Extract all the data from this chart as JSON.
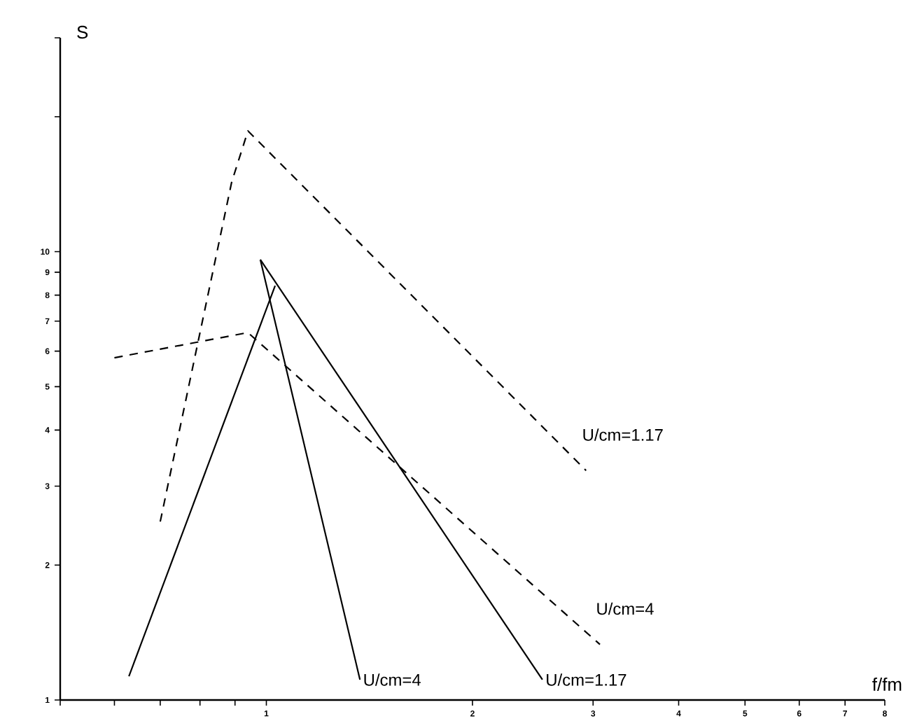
{
  "chart_data": {
    "type": "line",
    "log": "xy",
    "xlabel": "f/fm",
    "ylabel": "S",
    "marker": "none",
    "xlim": [
      0.5,
      8
    ],
    "ylim": [
      1,
      30
    ],
    "xticks": [
      {
        "value": 0.5,
        "label": null
      },
      {
        "value": 0.6,
        "label": null
      },
      {
        "value": 0.7,
        "label": null
      },
      {
        "value": 0.8,
        "label": null
      },
      {
        "value": 0.9,
        "label": null
      },
      1,
      2,
      3,
      4,
      5,
      6,
      7,
      8
    ],
    "yticks": [
      1,
      2,
      3,
      4,
      5,
      6,
      7,
      8,
      9,
      10,
      {
        "value": 20,
        "label": null
      },
      {
        "value": 30,
        "label": null
      }
    ],
    "series": [
      {
        "name": "U/cm=1.17",
        "color": "#000000",
        "line_style": "dashed",
        "x": [
          0.7,
          0.89,
          0.94,
          2.93
        ],
        "values": [
          2.5,
          14.3,
          18.6,
          3.25
        ]
      },
      {
        "name": "U/cm=4",
        "color": "#000000",
        "line_style": "dashed",
        "x": [
          0.6,
          0.94,
          3.07
        ],
        "values": [
          5.8,
          6.6,
          1.33
        ]
      },
      {
        "color": "#000000",
        "line_style": "solid",
        "x": [
          0.63,
          1.03
        ],
        "values": [
          1.13,
          8.4
        ]
      },
      {
        "name": "U/cm=4",
        "color": "#000000",
        "line_style": "solid",
        "x": [
          0.98,
          1.37
        ],
        "values": [
          9.6,
          1.11
        ]
      },
      {
        "name": "U/cm=1.17",
        "color": "#000000",
        "line_style": "solid",
        "x": [
          0.98,
          2.53
        ],
        "values": [
          9.6,
          1.11
        ]
      }
    ]
  }
}
